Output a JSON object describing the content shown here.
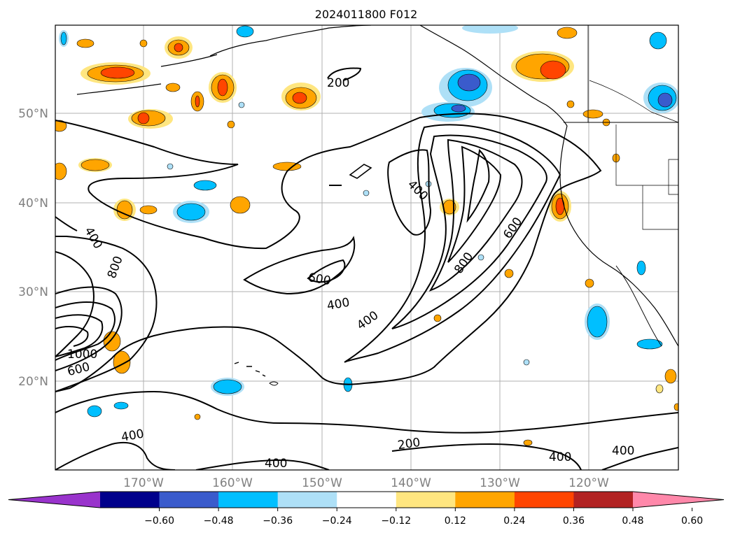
{
  "title": "2024011800 F012",
  "axes": {
    "lat_labels": [
      "50°N",
      "40°N",
      "30°N",
      "20°N"
    ],
    "lon_labels": [
      "170°W",
      "160°W",
      "150°W",
      "140°W",
      "130°W",
      "120°W"
    ],
    "label_color": "#808080"
  },
  "contour_labels": [
    {
      "text": "200"
    },
    {
      "text": "400"
    },
    {
      "text": "400"
    },
    {
      "text": "800"
    },
    {
      "text": "1000"
    },
    {
      "text": "600"
    },
    {
      "text": "600"
    },
    {
      "text": "400"
    },
    {
      "text": "400"
    },
    {
      "text": "600"
    },
    {
      "text": "800"
    },
    {
      "text": "400"
    },
    {
      "text": "400"
    },
    {
      "text": "400"
    },
    {
      "text": "200"
    },
    {
      "text": "400"
    },
    {
      "text": "400"
    }
  ],
  "colorbar": {
    "ticks": [
      "−0.60",
      "−0.48",
      "−0.36",
      "−0.24",
      "−0.12",
      "0.12",
      "0.24",
      "0.36",
      "0.48",
      "0.60"
    ],
    "colors": [
      "#9933cc",
      "#00008b",
      "#3a5bcc",
      "#00bfff",
      "#aee0f7",
      "#ffffff",
      "#ffe680",
      "#ffa500",
      "#ff4500",
      "#b22222",
      "#ff88aa"
    ]
  }
}
